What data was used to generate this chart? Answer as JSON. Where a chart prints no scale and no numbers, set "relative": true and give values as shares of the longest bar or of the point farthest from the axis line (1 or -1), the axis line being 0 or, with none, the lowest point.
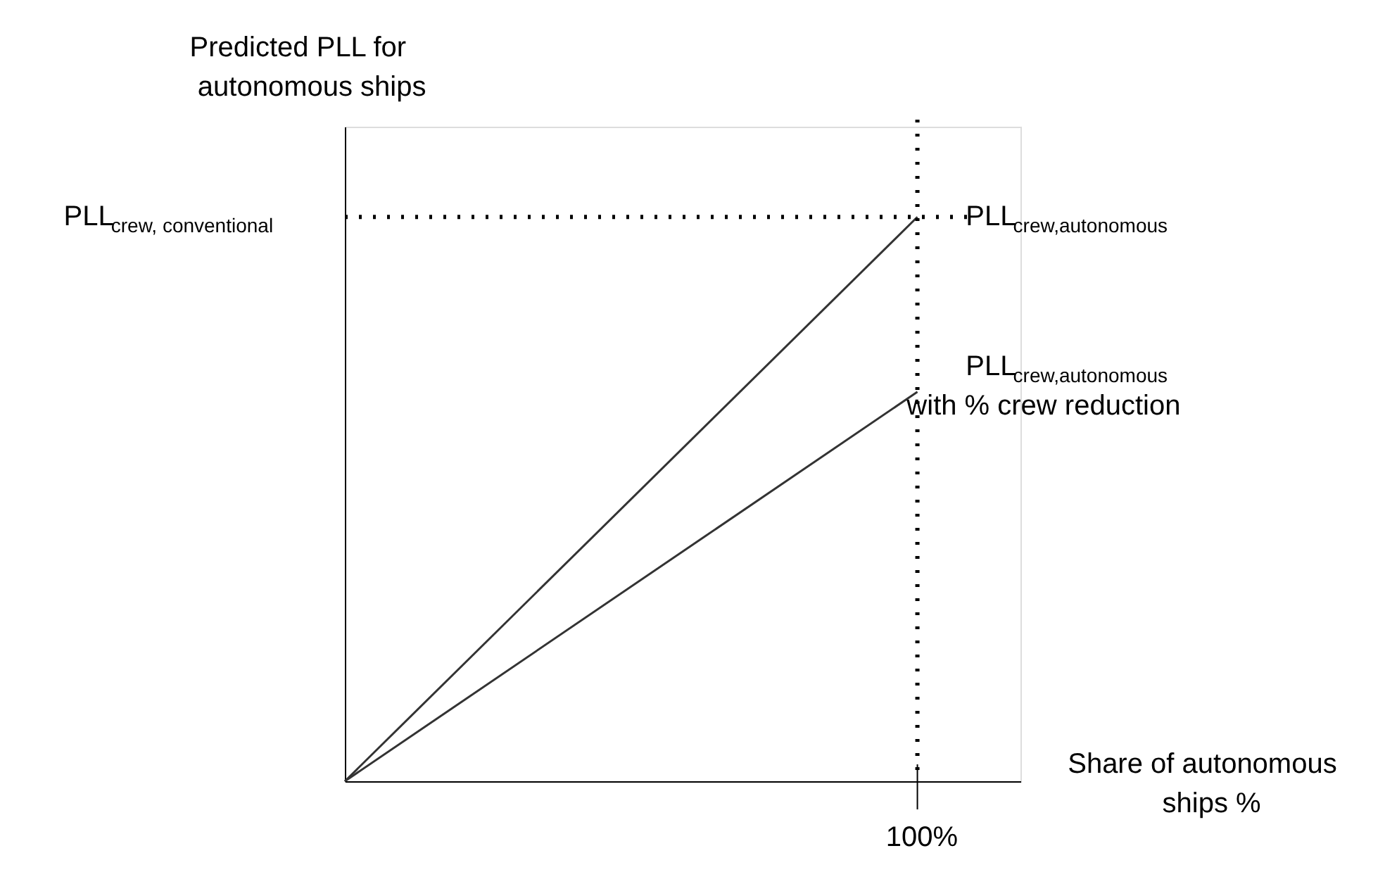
{
  "chart_data": {
    "type": "line",
    "relative": true,
    "xlabel": "Share of autonomous\nships %",
    "ylabel": "Predicted PLL for\nautonomous ships",
    "categories": [
      null,
      null
    ],
    "series": [
      {
        "name": "PLL$_{crew,autonomous}$",
        "color": "#333333",
        "values": [
          0,
          1
        ]
      },
      {
        "name": "PLL$_{crew,autonomous}$\nwith % crew reduction",
        "color": "#333333",
        "values": [
          0,
          0.69
        ]
      }
    ],
    "ref_lines": [
      {
        "axis": "y",
        "value": 1,
        "label": "PLL$_{crew, conventional}$",
        "color": "#000000",
        "line_style": "dotted"
      }
    ],
    "annotations": [
      "100%"
    ],
    "marker": "none",
    "line_style": "solid"
  }
}
